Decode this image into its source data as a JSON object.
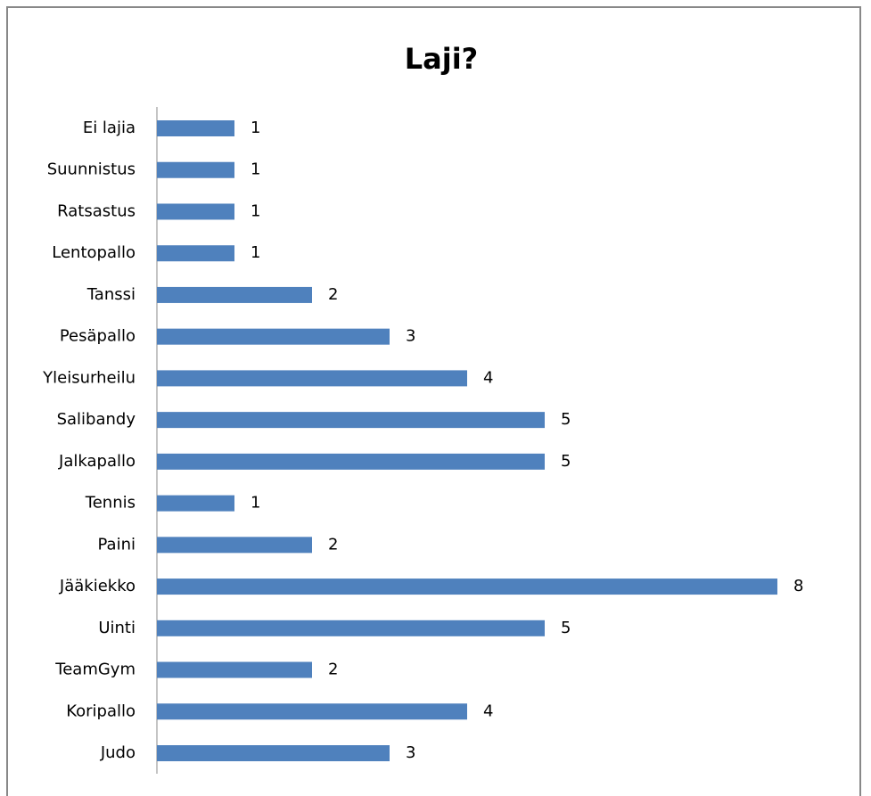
{
  "chart_data": {
    "type": "bar",
    "orientation": "horizontal",
    "title": "Laji?",
    "categories": [
      "Ei lajia",
      "Suunnistus",
      "Ratsastus",
      "Lentopallo",
      "Tanssi",
      "Pesäpallo",
      "Yleisurheilu",
      "Salibandy",
      "Jalkapallo",
      "Tennis",
      "Paini",
      "Jääkiekko",
      "Uinti",
      "TeamGym",
      "Koripallo",
      "Judo"
    ],
    "values": [
      1,
      1,
      1,
      1,
      2,
      3,
      4,
      5,
      5,
      1,
      2,
      8,
      5,
      2,
      4,
      3
    ],
    "color": "#4f81bd"
  }
}
